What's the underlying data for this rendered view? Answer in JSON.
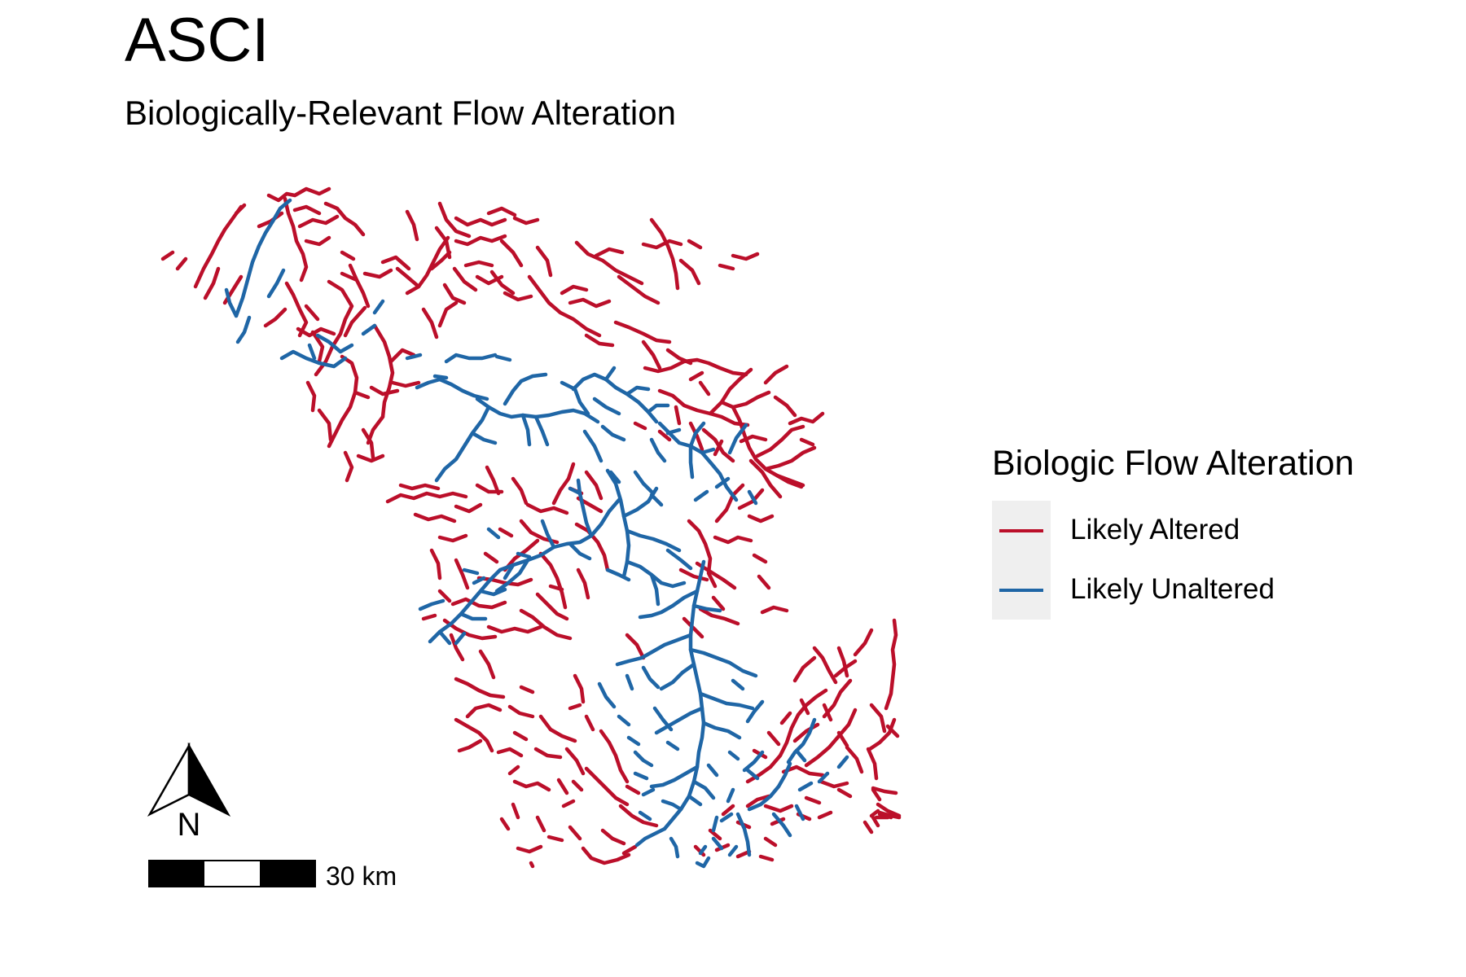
{
  "title": "ASCI",
  "subtitle": "Biologically-Relevant Flow Alteration",
  "colors": {
    "likely_altered": "#bb0f2a",
    "likely_unaltered": "#1f66a6"
  },
  "legend": {
    "title": "Biologic Flow Alteration",
    "items": [
      {
        "label": "Likely Altered",
        "color_key": "likely_altered"
      },
      {
        "label": "Likely Unaltered",
        "color_key": "likely_unaltered"
      }
    ]
  },
  "north_arrow": {
    "label": "N",
    "icon": "north-arrow-icon"
  },
  "scale_bar": {
    "label": "30 km"
  }
}
